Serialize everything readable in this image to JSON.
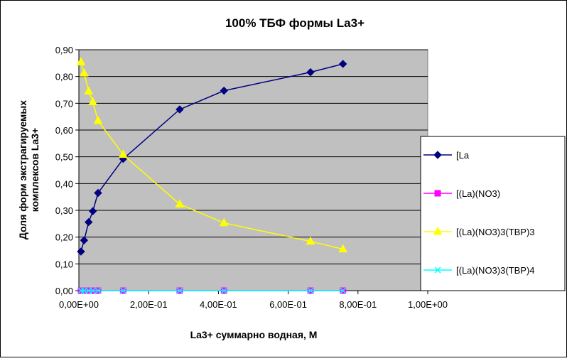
{
  "chart_data": {
    "type": "line",
    "title": "100%  ТБФ  формы La3+",
    "xlabel": "La3+ суммарно  водная, М",
    "ylabel_lines": [
      "Доля форм экстрагируемых",
      "комплексов La3+"
    ],
    "xlim": [
      0,
      1.0
    ],
    "ylim": [
      0,
      0.9
    ],
    "x_ticks": [
      {
        "value": 0.0,
        "label": "0,00E+00"
      },
      {
        "value": 0.2,
        "label": "2,00E-01"
      },
      {
        "value": 0.4,
        "label": "4,00E-01"
      },
      {
        "value": 0.6,
        "label": "6,00E-01"
      },
      {
        "value": 0.8,
        "label": "8,00E-01"
      },
      {
        "value": 1.0,
        "label": "1,00E+00"
      }
    ],
    "y_ticks": [
      {
        "value": 0.0,
        "label": "0,00"
      },
      {
        "value": 0.1,
        "label": "0,10"
      },
      {
        "value": 0.2,
        "label": "0,20"
      },
      {
        "value": 0.3,
        "label": "0,30"
      },
      {
        "value": 0.4,
        "label": "0,40"
      },
      {
        "value": 0.5,
        "label": "0,50"
      },
      {
        "value": 0.6,
        "label": "0,60"
      },
      {
        "value": 0.7,
        "label": "0,70"
      },
      {
        "value": 0.8,
        "label": "0,80"
      },
      {
        "value": 0.9,
        "label": "0,90"
      }
    ],
    "x": [
      0.006,
      0.015,
      0.028,
      0.04,
      0.055,
      0.127,
      0.289,
      0.416,
      0.664,
      0.757
    ],
    "series": [
      {
        "name": "[La",
        "color": "#000080",
        "marker": "diamond",
        "values": [
          0.146,
          0.188,
          0.256,
          0.297,
          0.365,
          0.492,
          0.677,
          0.747,
          0.816,
          0.847
        ]
      },
      {
        "name": "[(La)(NO3)",
        "color": "#ff00ff",
        "marker": "square",
        "values": [
          0,
          0,
          0,
          0,
          0,
          0,
          0,
          0,
          0,
          0
        ]
      },
      {
        "name": "[(La)(NO3)3(TBP)3",
        "color": "#ffff00",
        "marker": "triangle",
        "values": [
          0.854,
          0.812,
          0.745,
          0.705,
          0.635,
          0.508,
          0.323,
          0.253,
          0.184,
          0.155
        ]
      },
      {
        "name": "[(La)(NO3)3(TBP)4",
        "color": "#00ffff",
        "marker": "x",
        "values": [
          0,
          0,
          0,
          0,
          0,
          0,
          0,
          0,
          0,
          0
        ]
      }
    ],
    "grid": "horizontal",
    "plot_background": "#c0c0c0",
    "legend_position": "right"
  }
}
